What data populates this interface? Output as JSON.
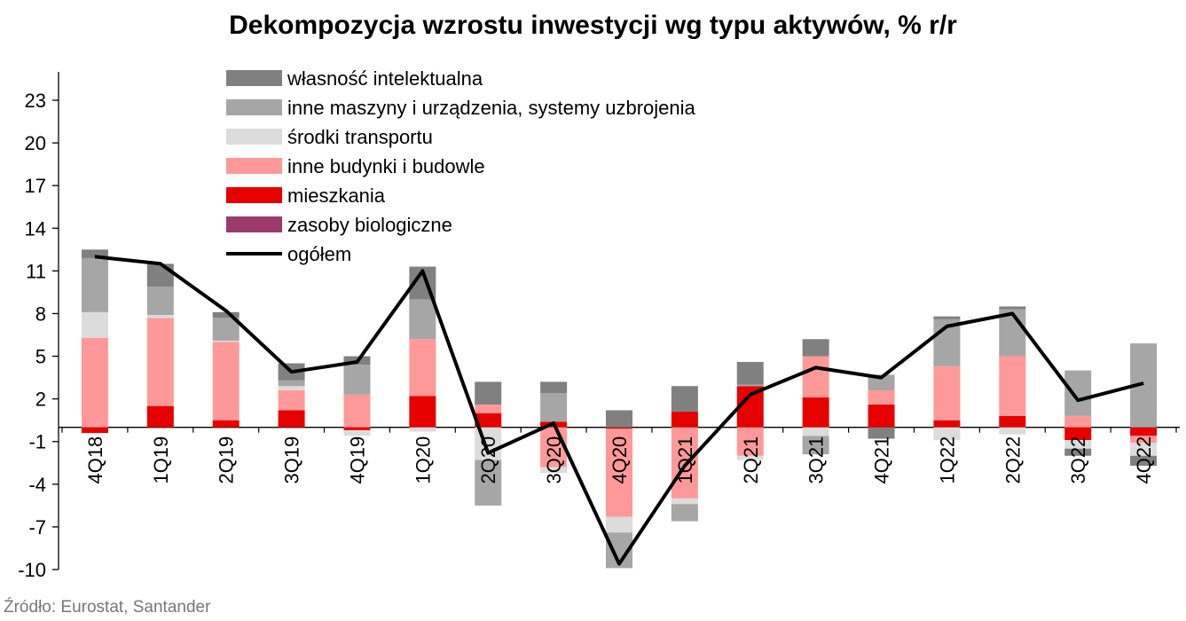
{
  "chart_data": {
    "type": "bar",
    "stacked": true,
    "title": "Dekompozycja wzrostu inwestycji wg typu aktywów, % r/r",
    "source": "Źródło: Eurostat, Santander",
    "xlabel": "",
    "ylabel": "",
    "ylim": [
      -10,
      23
    ],
    "yticks": [
      23,
      20,
      17,
      14,
      11,
      8,
      5,
      2,
      -1,
      -4,
      -7,
      -10
    ],
    "grid": false,
    "legend_position": "top-left",
    "categories": [
      "4Q18",
      "1Q19",
      "2Q19",
      "3Q19",
      "4Q19",
      "1Q20",
      "2Q20",
      "3Q20",
      "4Q20",
      "1Q21",
      "2Q21",
      "3Q21",
      "4Q21",
      "1Q22",
      "2Q22",
      "3Q22",
      "4Q22"
    ],
    "series": [
      {
        "name": "zasoby biologiczne",
        "color": "#9b3a6b",
        "values": [
          0,
          0,
          0,
          0,
          0,
          0,
          0,
          0,
          0,
          0,
          0,
          0,
          0,
          0,
          0,
          0,
          0
        ]
      },
      {
        "name": "mieszkania",
        "color": "#e60000",
        "values": [
          -0.4,
          1.5,
          0.5,
          1.2,
          -0.2,
          2.2,
          1.0,
          0.4,
          -0.1,
          1.1,
          2.9,
          2.1,
          1.6,
          0.5,
          0.8,
          -0.9,
          -0.6
        ]
      },
      {
        "name": "inne budynki i budowle",
        "color": "#ff9999",
        "values": [
          6.3,
          6.2,
          5.5,
          1.4,
          2.3,
          4.0,
          0.6,
          -2.8,
          -6.2,
          -5.0,
          -2.0,
          2.9,
          1.0,
          3.8,
          4.2,
          0.8,
          -0.5
        ]
      },
      {
        "name": "środki transportu",
        "color": "#dcdcdc",
        "values": [
          1.8,
          0.2,
          0.1,
          0.3,
          -0.4,
          -0.3,
          -2.3,
          -0.4,
          -1.1,
          -0.4,
          -0.3,
          -0.6,
          0.0,
          -0.9,
          -0.5,
          -0.6,
          -0.9
        ]
      },
      {
        "name": "inne maszyny i urządzenia, systemy uzbrojenia",
        "color": "#a6a6a6",
        "values": [
          3.8,
          2.0,
          1.6,
          0.4,
          2.1,
          2.8,
          -3.2,
          2.0,
          -2.5,
          -1.2,
          0.1,
          -1.3,
          1.1,
          3.3,
          3.3,
          3.2,
          5.9
        ]
      },
      {
        "name": "własność intelektualna",
        "color": "#808080",
        "values": [
          0.6,
          1.6,
          0.4,
          1.2,
          0.6,
          2.3,
          1.6,
          0.8,
          1.2,
          1.8,
          1.6,
          1.2,
          -0.8,
          0.2,
          0.2,
          -0.5,
          -0.7
        ]
      }
    ],
    "line": {
      "name": "ogółem",
      "color": "#000000",
      "values": [
        12.0,
        11.5,
        8.2,
        3.9,
        4.6,
        11.0,
        -1.8,
        0.3,
        -9.6,
        -2.7,
        2.3,
        4.2,
        3.5,
        7.1,
        8.0,
        1.9,
        3.1
      ]
    }
  }
}
